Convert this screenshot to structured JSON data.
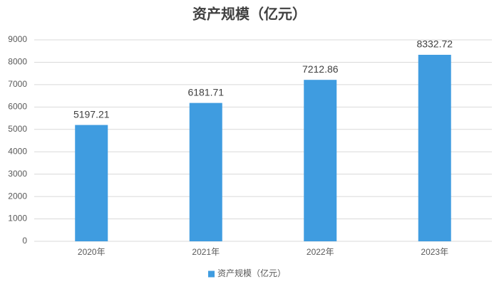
{
  "chart_data": {
    "type": "bar",
    "title": "资产规模（亿元）",
    "categories": [
      "2020年",
      "2021年",
      "2022年",
      "2023年"
    ],
    "series": [
      {
        "name": "资产规模（亿元）",
        "color": "#3f9ce0",
        "values": [
          5197.21,
          6181.71,
          7212.86,
          8332.72
        ]
      }
    ],
    "ylim": [
      0,
      9000
    ],
    "yticks": [
      0,
      1000,
      2000,
      3000,
      4000,
      5000,
      6000,
      7000,
      8000,
      9000
    ],
    "grid": true,
    "legend": "bottom"
  }
}
